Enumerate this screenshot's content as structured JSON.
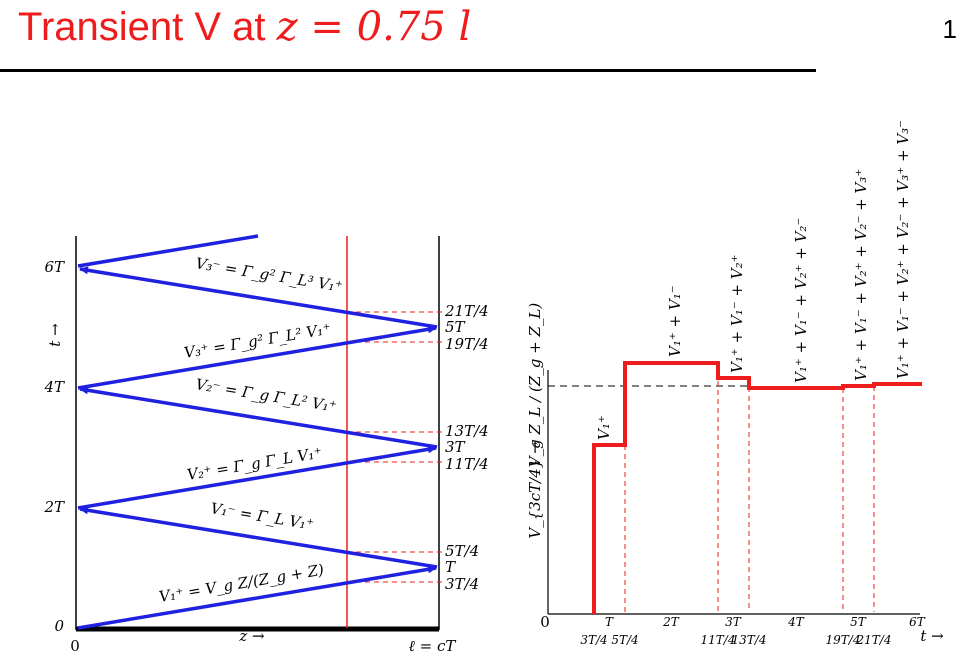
{
  "header": {
    "title_prefix": "Transient V at ",
    "title_math": "z = 0.75 l",
    "page_number": "1"
  },
  "bounce": {
    "y_ticks": [
      "0",
      "2T",
      "4T",
      "6T"
    ],
    "y_axis_label": "t →",
    "x_start": "0",
    "x_axis_label": "z →",
    "x_end": "ℓ = cT",
    "right_times": [
      "T",
      "3T/4",
      "5T/4",
      "3T",
      "11T/4",
      "13T/4",
      "5T",
      "19T/4",
      "21T/4"
    ],
    "wave_labels": [
      "V₁⁺ = V_g Z/(Z_g + Z)",
      "V₁⁻ = Γ_L V₁⁺",
      "V₂⁺ = Γ_g Γ_L V₁⁺",
      "V₂⁻ = Γ_g Γ_L² V₁⁺",
      "V₃⁺ = Γ_g² Γ_L² V₁⁺",
      "V₃⁻ = Γ_g² Γ_L³ V₁⁺"
    ]
  },
  "waveform": {
    "y_label": "V_{3cT/4} →",
    "level_label": "V_g Z_L / (Z_g + Z_L)",
    "x_axis_label": "t →",
    "x_ticks": [
      "0",
      "T",
      "2T",
      "3T",
      "4T",
      "5T",
      "6T"
    ],
    "sub_ticks": [
      "3T/4",
      "5T/4",
      "11T/4",
      "13T/4",
      "19T/4",
      "21T/4"
    ],
    "step_labels": [
      "V₁⁺",
      "V₁⁺ + V₁⁻",
      "V₁⁺ + V₁⁻ + V₂⁺",
      "V₁⁺ + V₁⁻ + V₂⁺ + V₂⁻",
      "V₁⁺ + V₁⁻ + V₂⁺ + V₂⁻ + V₃⁺",
      "V₁⁺ + V₁⁻ + V₂⁺ + V₂⁻ + V₃⁺ + V₃⁻"
    ]
  },
  "colors": {
    "title": "#ee1c1c",
    "wave": "#2020e0",
    "response": "#ee1c1c",
    "marker": "#ee1c1c"
  }
}
